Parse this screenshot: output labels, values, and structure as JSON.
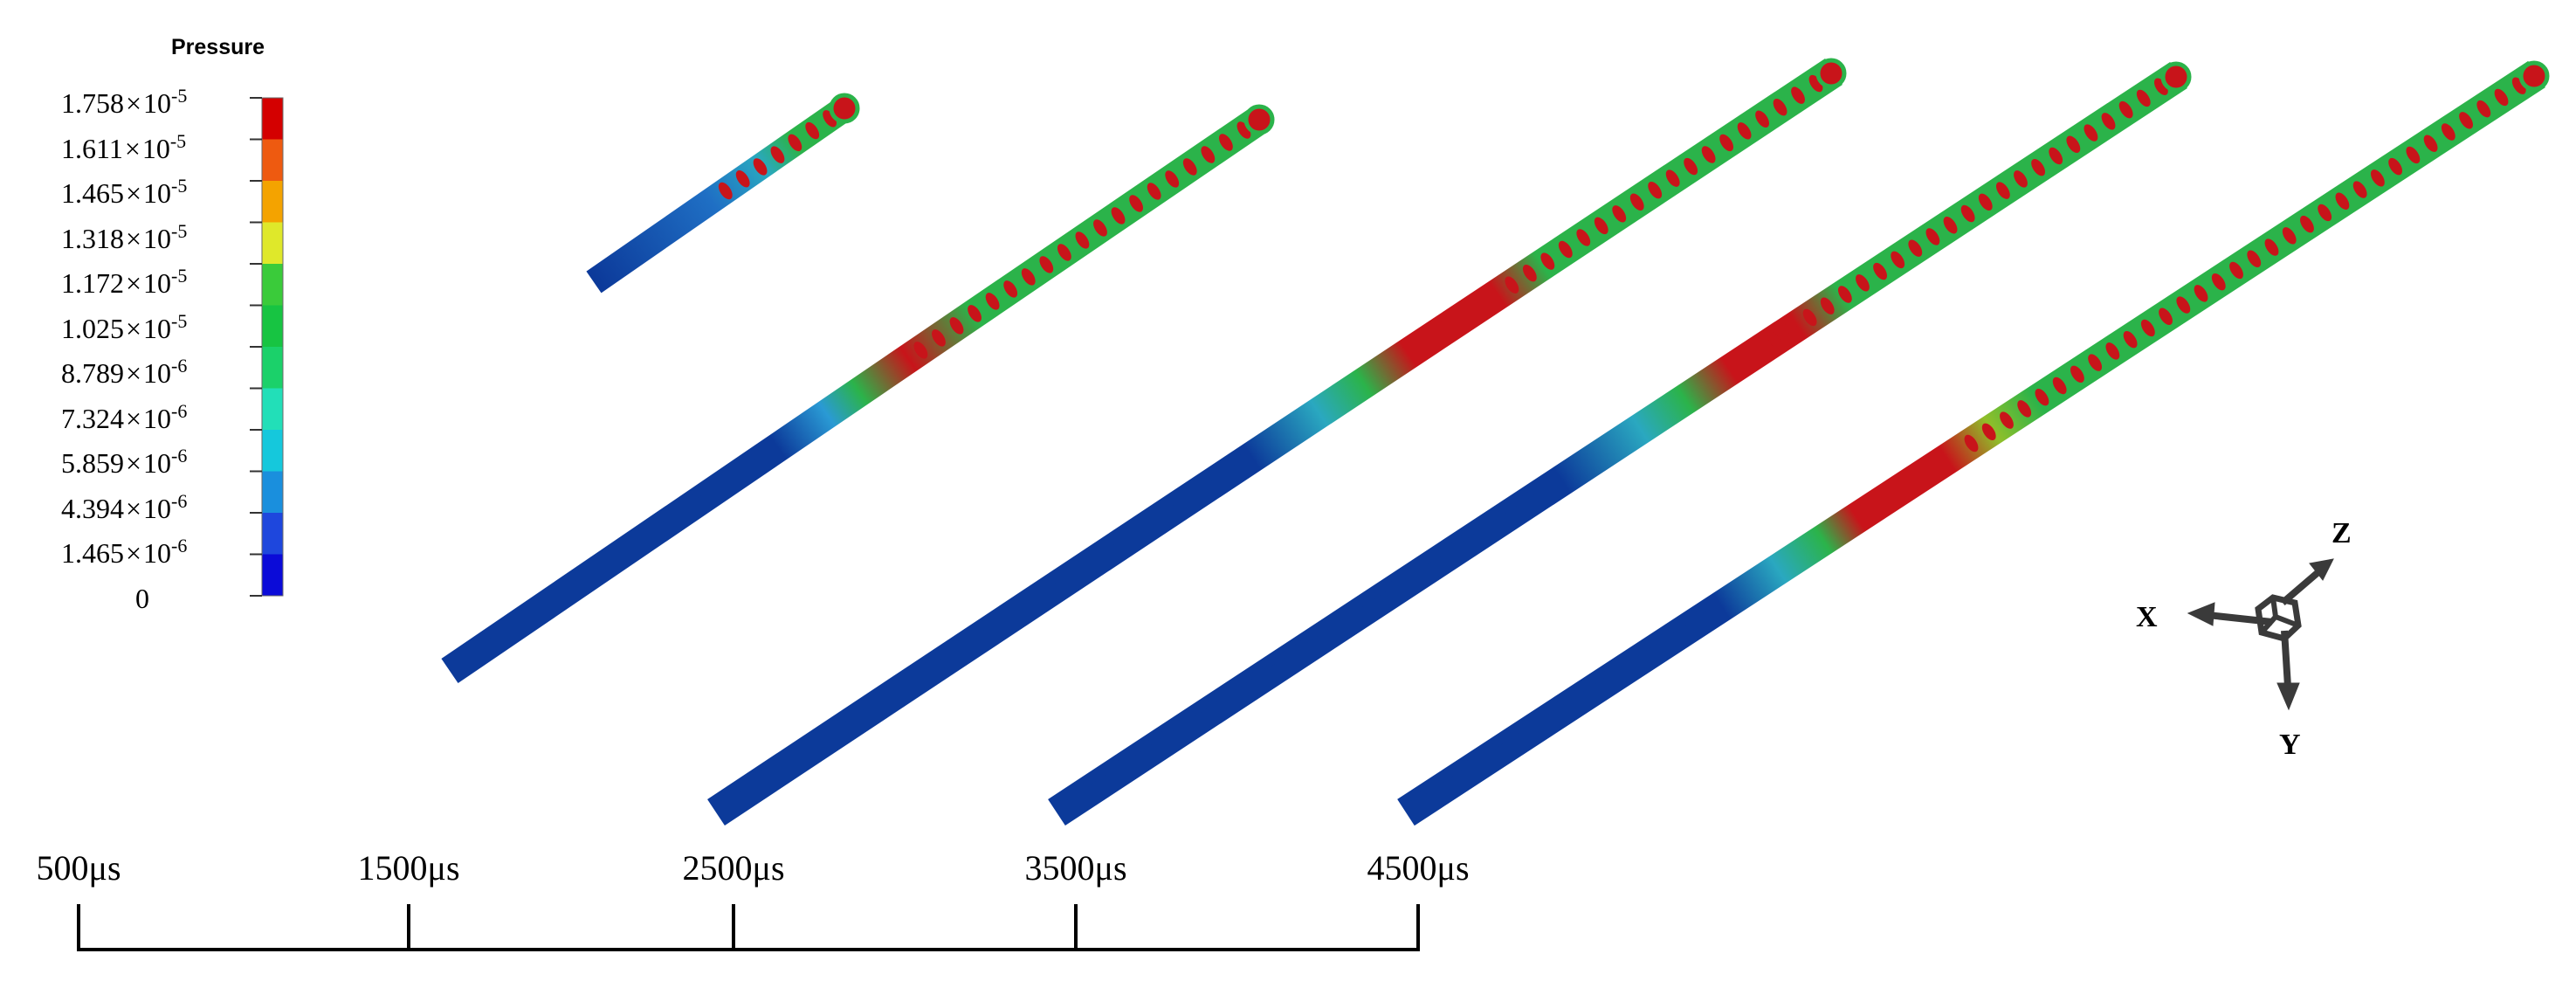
{
  "legend": {
    "title": "Pressure",
    "labels": [
      {
        "mantissa": "1.758",
        "times": "×",
        "base": "10",
        "exp": "-5"
      },
      {
        "mantissa": "1.611",
        "times": "×",
        "base": "10",
        "exp": "-5"
      },
      {
        "mantissa": "1.465",
        "times": "×",
        "base": "10",
        "exp": "-5"
      },
      {
        "mantissa": "1.318",
        "times": "×",
        "base": "10",
        "exp": "-5"
      },
      {
        "mantissa": "1.172",
        "times": "×",
        "base": "10",
        "exp": "-5"
      },
      {
        "mantissa": "1.025",
        "times": "×",
        "base": "10",
        "exp": "-5"
      },
      {
        "mantissa": "8.789",
        "times": "×",
        "base": "10",
        "exp": "-6"
      },
      {
        "mantissa": "7.324",
        "times": "×",
        "base": "10",
        "exp": "-6"
      },
      {
        "mantissa": "5.859",
        "times": "×",
        "base": "10",
        "exp": "-6"
      },
      {
        "mantissa": "4.394",
        "times": "×",
        "base": "10",
        "exp": "-6"
      },
      {
        "mantissa": "1.465",
        "times": "×",
        "base": "10",
        "exp": "-6"
      },
      {
        "mantissa": "0",
        "times": "",
        "base": "",
        "exp": ""
      }
    ],
    "colors": [
      "#d40000",
      "#ee5a10",
      "#f4a300",
      "#dfe82a",
      "#3acb3a",
      "#17c442",
      "#1bd16a",
      "#22dfb8",
      "#15c8dc",
      "#1a8fdd",
      "#1e47dd",
      "#0b0bd8"
    ]
  },
  "timeline": {
    "labels": [
      "500μs",
      "1500μs",
      "2500μs",
      "3500μs",
      "4500μs"
    ]
  },
  "axes": {
    "x": "X",
    "y": "Y",
    "z": "Z"
  },
  "colors": {
    "high": "#c8141a",
    "ring": "#2bb34a",
    "low": "#0c3a9a",
    "mid": "#2a9ad4"
  }
}
